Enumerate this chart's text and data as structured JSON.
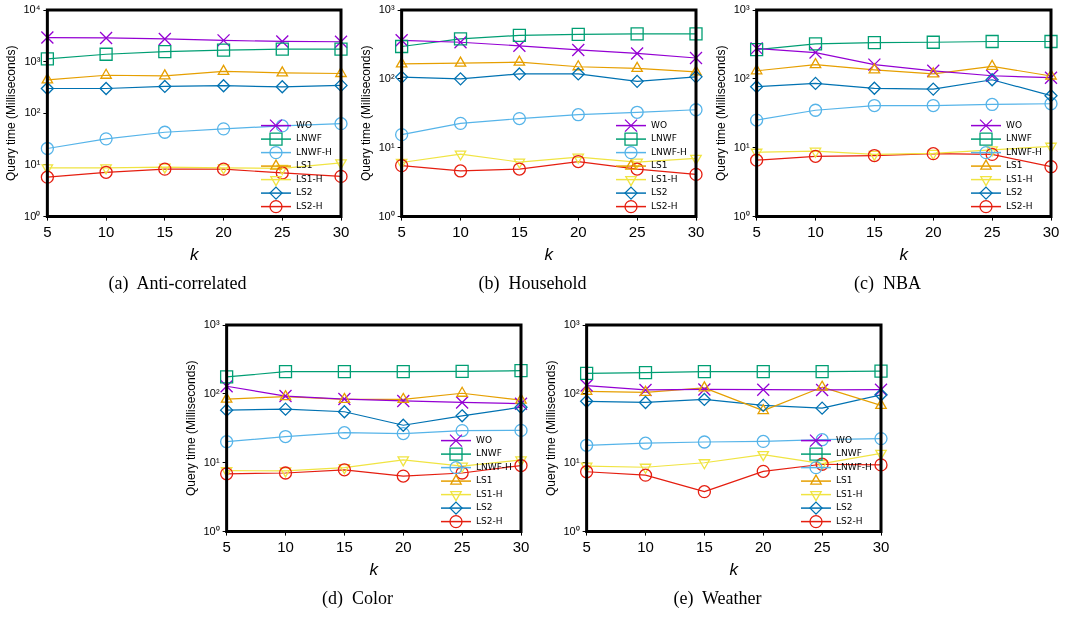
{
  "chart_data": [
    {
      "type": "line",
      "title": "(a)  Anti-correlated",
      "xlabel": "k",
      "ylabel": "Query time (Milliseconds)",
      "x": [
        5,
        10,
        15,
        20,
        25,
        30
      ],
      "xlim": [
        5,
        30
      ],
      "xticks": [
        5,
        10,
        15,
        20,
        25,
        30
      ],
      "log": "y",
      "ylim": [
        1,
        10000
      ],
      "yticks": [
        {
          "value": 1,
          "label": "10⁰"
        },
        {
          "value": 10,
          "label": "10¹"
        },
        {
          "value": 100,
          "label": "10²"
        },
        {
          "value": 1000,
          "label": "10³"
        },
        {
          "value": 10000,
          "label": "10⁴"
        }
      ],
      "grid": false,
      "legend": "bottom right",
      "series": [
        {
          "name": "WO",
          "color": "#9400d3",
          "marker": "cross",
          "values": [
            2930,
            2880,
            2750,
            2580,
            2460,
            2430
          ]
        },
        {
          "name": "LNWF",
          "color": "#009e73",
          "marker": "square",
          "values": [
            1130,
            1390,
            1570,
            1670,
            1750,
            1750
          ]
        },
        {
          "name": "LNWF-H",
          "color": "#56b4e9",
          "marker": "circle",
          "values": [
            20.8,
            32,
            43,
            50,
            57,
            63
          ]
        },
        {
          "name": "LS1",
          "color": "#e69f00",
          "marker": "triangle",
          "values": [
            445,
            545,
            530,
            647,
            608,
            590
          ]
        },
        {
          "name": "LS1-H",
          "color": "#f0e442",
          "marker": "triangle-down",
          "values": [
            8.8,
            8.8,
            9.1,
            8.8,
            8.6,
            11
          ]
        },
        {
          "name": "LS2",
          "color": "#0072b2",
          "marker": "diamond",
          "values": [
            302,
            302,
            331,
            342,
            326,
            347
          ]
        },
        {
          "name": "LS2-H",
          "color": "#e51e10",
          "marker": "circle",
          "values": [
            5.8,
            7.2,
            8.3,
            8.3,
            7.0,
            6.0
          ]
        }
      ]
    },
    {
      "type": "line",
      "title": "(b)  Household",
      "xlabel": "k",
      "ylabel": "Query time (Milliseconds)",
      "x": [
        5,
        10,
        15,
        20,
        25,
        30
      ],
      "xlim": [
        5,
        30
      ],
      "xticks": [
        5,
        10,
        15,
        20,
        25,
        30
      ],
      "log": "y",
      "ylim": [
        1,
        1000
      ],
      "yticks": [
        {
          "value": 1,
          "label": "10⁰"
        },
        {
          "value": 10,
          "label": "10¹"
        },
        {
          "value": 100,
          "label": "10²"
        },
        {
          "value": 1000,
          "label": "10³"
        }
      ],
      "grid": false,
      "legend": "bottom right",
      "series": [
        {
          "name": "WO",
          "color": "#9400d3",
          "marker": "cross",
          "values": [
            363,
            340,
            302,
            263,
            234,
            201
          ]
        },
        {
          "name": "LNWF",
          "color": "#009e73",
          "marker": "square",
          "values": [
            295,
            381,
            428,
            443,
            449,
            449
          ]
        },
        {
          "name": "LNWF-H",
          "color": "#56b4e9",
          "marker": "circle",
          "values": [
            15.5,
            22.6,
            26.5,
            30.2,
            32.7,
            35.6
          ]
        },
        {
          "name": "LS1",
          "color": "#e69f00",
          "marker": "triangle",
          "values": [
            165,
            169,
            175,
            150,
            142,
            126
          ]
        },
        {
          "name": "LS1-H",
          "color": "#f0e442",
          "marker": "triangle-down",
          "values": [
            6.1,
            8.1,
            6.2,
            7.3,
            6.2,
            7.0
          ]
        },
        {
          "name": "LS2",
          "color": "#0072b2",
          "marker": "diamond",
          "values": [
            106,
            100,
            118,
            118,
            92,
            107
          ]
        },
        {
          "name": "LS2-H",
          "color": "#e51e10",
          "marker": "circle",
          "values": [
            5.5,
            4.6,
            4.9,
            6.3,
            4.9,
            4.1
          ]
        }
      ]
    },
    {
      "type": "line",
      "title": "(c)  NBA",
      "xlabel": "k",
      "ylabel": "Query time (Milliseconds)",
      "x": [
        5,
        10,
        15,
        20,
        25,
        30
      ],
      "xlim": [
        5,
        30
      ],
      "xticks": [
        5,
        10,
        15,
        20,
        25,
        30
      ],
      "log": "y",
      "ylim": [
        1,
        1000
      ],
      "yticks": [
        {
          "value": 1,
          "label": "10⁰"
        },
        {
          "value": 10,
          "label": "10¹"
        },
        {
          "value": 100,
          "label": "10²"
        },
        {
          "value": 1000,
          "label": "10³"
        }
      ],
      "grid": false,
      "legend": "bottom right",
      "series": [
        {
          "name": "WO",
          "color": "#9400d3",
          "marker": "cross",
          "values": [
            277,
            241,
            161,
            131,
            111,
            104
          ]
        },
        {
          "name": "LNWF",
          "color": "#009e73",
          "marker": "square",
          "values": [
            265,
            322,
            337,
            340,
            349,
            349
          ]
        },
        {
          "name": "LNWF-H",
          "color": "#56b4e9",
          "marker": "circle",
          "values": [
            25.2,
            35,
            41,
            41,
            42.5,
            43.5
          ]
        },
        {
          "name": "LS1",
          "color": "#e69f00",
          "marker": "triangle",
          "values": [
            131,
            161,
            135,
            118,
            152,
            110
          ]
        },
        {
          "name": "LS1-H",
          "color": "#f0e442",
          "marker": "triangle-down",
          "values": [
            8.6,
            8.9,
            8.0,
            8.3,
            9.3,
            10.5
          ]
        },
        {
          "name": "LS2",
          "color": "#0072b2",
          "marker": "diamond",
          "values": [
            77,
            86,
            73,
            71,
            97,
            57
          ]
        },
        {
          "name": "LS2-H",
          "color": "#e51e10",
          "marker": "circle",
          "values": [
            6.6,
            7.5,
            7.7,
            8.2,
            8.0,
            5.3
          ]
        }
      ]
    },
    {
      "type": "line",
      "title": "(d)  Color",
      "xlabel": "k",
      "ylabel": "Query time (Milliseconds)",
      "x": [
        5,
        10,
        15,
        20,
        25,
        30
      ],
      "xlim": [
        5,
        30
      ],
      "xticks": [
        5,
        10,
        15,
        20,
        25,
        30
      ],
      "log": "y",
      "ylim": [
        1,
        1000
      ],
      "yticks": [
        {
          "value": 1,
          "label": "10⁰"
        },
        {
          "value": 10,
          "label": "10¹"
        },
        {
          "value": 100,
          "label": "10²"
        },
        {
          "value": 1000,
          "label": "10³"
        }
      ],
      "grid": false,
      "legend": "bottom right",
      "series": [
        {
          "name": "WO",
          "color": "#9400d3",
          "marker": "cross",
          "values": [
            129,
            93,
            84,
            79,
            75,
            72
          ]
        },
        {
          "name": "LNWF",
          "color": "#009e73",
          "marker": "square",
          "values": [
            176,
            210,
            210,
            210,
            212,
            217
          ]
        },
        {
          "name": "LNWF-H",
          "color": "#56b4e9",
          "marker": "circle",
          "values": [
            20.2,
            24,
            27.3,
            26.5,
            29.3,
            29.5
          ]
        },
        {
          "name": "LS1",
          "color": "#e69f00",
          "marker": "triangle",
          "values": [
            84,
            91,
            83,
            83,
            102,
            81
          ]
        },
        {
          "name": "LS1-H",
          "color": "#f0e442",
          "marker": "triangle-down",
          "values": [
            7.7,
            7.6,
            8.5,
            11,
            8.9,
            11
          ]
        },
        {
          "name": "LS2",
          "color": "#0072b2",
          "marker": "diamond",
          "values": [
            58,
            60,
            55,
            35,
            48,
            64
          ]
        },
        {
          "name": "LS2-H",
          "color": "#e51e10",
          "marker": "circle",
          "values": [
            6.9,
            7.1,
            7.9,
            6.4,
            7.1,
            9.1
          ]
        }
      ]
    },
    {
      "type": "line",
      "title": "(e)  Weather",
      "xlabel": "k",
      "ylabel": "Query time (Milliseconds)",
      "x": [
        5,
        10,
        15,
        20,
        25,
        30
      ],
      "xlim": [
        5,
        30
      ],
      "xticks": [
        5,
        10,
        15,
        20,
        25,
        30
      ],
      "log": "y",
      "ylim": [
        1,
        1000
      ],
      "yticks": [
        {
          "value": 1,
          "label": "10⁰"
        },
        {
          "value": 10,
          "label": "10¹"
        },
        {
          "value": 100,
          "label": "10²"
        },
        {
          "value": 1000,
          "label": "10³"
        }
      ],
      "grid": false,
      "legend": "bottom right",
      "series": [
        {
          "name": "WO",
          "color": "#9400d3",
          "marker": "cross",
          "values": [
            132,
            114,
            116,
            115,
            114,
            115
          ]
        },
        {
          "name": "LNWF",
          "color": "#009e73",
          "marker": "square",
          "values": [
            199,
            204,
            211,
            211,
            211,
            214
          ]
        },
        {
          "name": "LNWF-H",
          "color": "#56b4e9",
          "marker": "circle",
          "values": [
            17.9,
            19.2,
            20,
            20.4,
            21.6,
            22.4
          ]
        },
        {
          "name": "LS1",
          "color": "#e69f00",
          "marker": "triangle",
          "values": [
            109,
            105,
            122,
            57,
            125,
            68
          ]
        },
        {
          "name": "LS1-H",
          "color": "#f0e442",
          "marker": "triangle-down",
          "values": [
            8.9,
            8.6,
            10,
            13.1,
            9.7,
            13.7
          ]
        },
        {
          "name": "LS2",
          "color": "#0072b2",
          "marker": "diamond",
          "values": [
            78,
            75,
            83,
            68,
            62,
            97
          ]
        },
        {
          "name": "LS2-H",
          "color": "#e51e10",
          "marker": "circle",
          "values": [
            7.4,
            6.6,
            3.8,
            7.5,
            9.5,
            9.3
          ]
        }
      ]
    }
  ]
}
